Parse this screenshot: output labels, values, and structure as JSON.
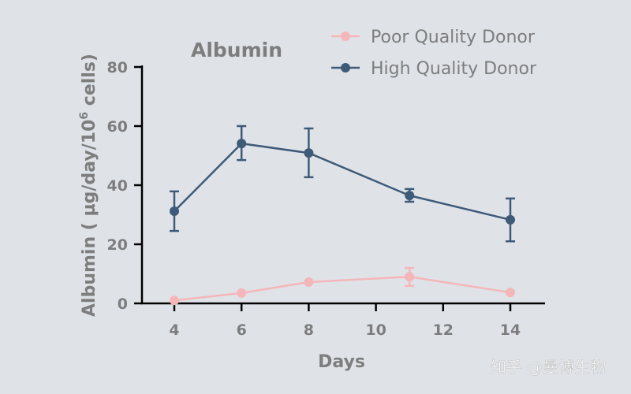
{
  "chart_data": {
    "type": "line",
    "title": "Albumin",
    "xlabel": "Days",
    "ylabel": "Albumin (µg/day/10^6 cells)",
    "ylabel_parts": {
      "main": "Albumin ( µg/day/10",
      "sup": "6",
      "tail": " cells)"
    },
    "xlim": [
      3,
      15
    ],
    "ylim": [
      0,
      80
    ],
    "xticks": [
      4,
      6,
      8,
      10,
      12,
      14
    ],
    "yticks": [
      0,
      20,
      40,
      60,
      80
    ],
    "grid": false,
    "legend_position": "top-right",
    "series": [
      {
        "name": "Poor Quality Donor",
        "color": "#f4b6b8",
        "x": [
          4,
          6,
          8,
          11,
          14
        ],
        "y": [
          1,
          3.5,
          7.2,
          9,
          3.7
        ],
        "err_low": [
          1,
          3.5,
          7.2,
          5.9,
          3.7
        ],
        "err_high": [
          1,
          3.5,
          7.2,
          12,
          3.7
        ]
      },
      {
        "name": "High Quality Donor",
        "color": "#3d5a78",
        "x": [
          4,
          6,
          8,
          11,
          14
        ],
        "y": [
          31.2,
          54.1,
          50.9,
          36.5,
          28.3
        ],
        "err_low": [
          24.5,
          48.5,
          42.7,
          34.4,
          21
        ],
        "err_high": [
          37.9,
          60,
          59.2,
          38.7,
          35.5
        ]
      }
    ]
  },
  "watermark": "知乎 @曼博生物"
}
